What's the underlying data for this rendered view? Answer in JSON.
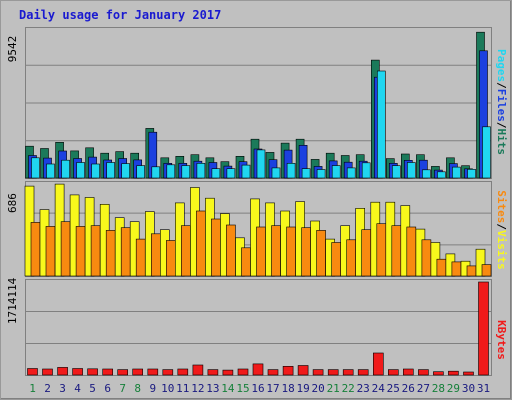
{
  "chart_data": [
    {
      "type": "bar",
      "panel": "hits-files-pages",
      "title": "Daily usage for January 2017",
      "ylabel_parts": [
        "Pages",
        "Files",
        "Hits"
      ],
      "ylabel_sep": "/",
      "ymax_label": "9542",
      "ylim": [
        0,
        9542
      ],
      "categories": [
        "1",
        "2",
        "3",
        "4",
        "5",
        "6",
        "7",
        "8",
        "9",
        "10",
        "11",
        "12",
        "13",
        "14",
        "15",
        "16",
        "17",
        "18",
        "19",
        "20",
        "21",
        "22",
        "23",
        "24",
        "25",
        "26",
        "27",
        "28",
        "29",
        "30",
        "31"
      ],
      "series": [
        {
          "name": "Hits",
          "values": [
            2050,
            1900,
            2300,
            1750,
            1950,
            1600,
            1700,
            1600,
            3200,
            1300,
            1400,
            1500,
            1300,
            1050,
            1400,
            2500,
            1650,
            2250,
            2500,
            1200,
            1600,
            1450,
            1500,
            7600,
            1250,
            1550,
            1500,
            750,
            1300,
            790,
            9400
          ]
        },
        {
          "name": "Files",
          "values": [
            1450,
            1280,
            1740,
            1260,
            1350,
            1160,
            1260,
            1170,
            2950,
            950,
            950,
            1080,
            1000,
            770,
            1050,
            1870,
            1180,
            1800,
            2110,
            750,
            1100,
            1020,
            1080,
            6500,
            950,
            1140,
            1150,
            510,
            930,
            590,
            8200
          ]
        },
        {
          "name": "Pages",
          "values": [
            1300,
            900,
            1150,
            1000,
            900,
            1000,
            930,
            800,
            720,
            850,
            800,
            950,
            600,
            600,
            830,
            1810,
            650,
            950,
            600,
            550,
            800,
            650,
            980,
            6900,
            790,
            1000,
            530,
            400,
            700,
            560,
            3300
          ]
        }
      ],
      "colors": {
        "Hits": "#1b7a5a",
        "Files": "#1b40e0",
        "Pages": "#20d6f0"
      }
    },
    {
      "type": "bar",
      "panel": "visits-sites",
      "ylabel_parts": [
        "Sites",
        "Visits"
      ],
      "ylabel_sep": "/",
      "ymax_label": "686",
      "ylim": [
        0,
        686
      ],
      "series": [
        {
          "name": "Visits",
          "values": [
            670,
            495,
            685,
            605,
            585,
            535,
            435,
            405,
            480,
            345,
            545,
            660,
            580,
            465,
            285,
            575,
            545,
            485,
            555,
            410,
            275,
            375,
            505,
            550,
            550,
            525,
            350,
            250,
            165,
            110,
            200
          ]
        },
        {
          "name": "Sites",
          "values": [
            400,
            370,
            405,
            370,
            375,
            340,
            360,
            275,
            315,
            265,
            375,
            485,
            425,
            380,
            210,
            365,
            375,
            365,
            360,
            340,
            250,
            270,
            345,
            390,
            375,
            365,
            270,
            125,
            105,
            75,
            85
          ]
        }
      ],
      "colors": {
        "Visits": "#f8f81c",
        "Sites": "#f88a10"
      }
    },
    {
      "type": "bar",
      "panel": "kbytes",
      "ylabel_parts": [
        "KBytes"
      ],
      "ymax_label": "1714114",
      "ylim": [
        0,
        1714114
      ],
      "series": [
        {
          "name": "KBytes",
          "values": [
            120000,
            110000,
            140000,
            120000,
            115000,
            110000,
            100000,
            110000,
            110000,
            100000,
            110000,
            185000,
            100000,
            90000,
            110000,
            205000,
            100000,
            160000,
            175000,
            100000,
            100000,
            100000,
            100000,
            405000,
            100000,
            110000,
            100000,
            60000,
            70000,
            55000,
            1714114
          ]
        }
      ],
      "colors": {
        "KBytes": "#f01a1a"
      }
    }
  ],
  "weekend_days": [
    1,
    7,
    8,
    14,
    15,
    21,
    22,
    28,
    29
  ],
  "colors": {
    "background": "#c0c0c0",
    "border": "#999999",
    "grid": "#808080",
    "title": "#1a1ad0",
    "weekday_label": "#1a1a80",
    "weekend_label": "#16803a"
  }
}
